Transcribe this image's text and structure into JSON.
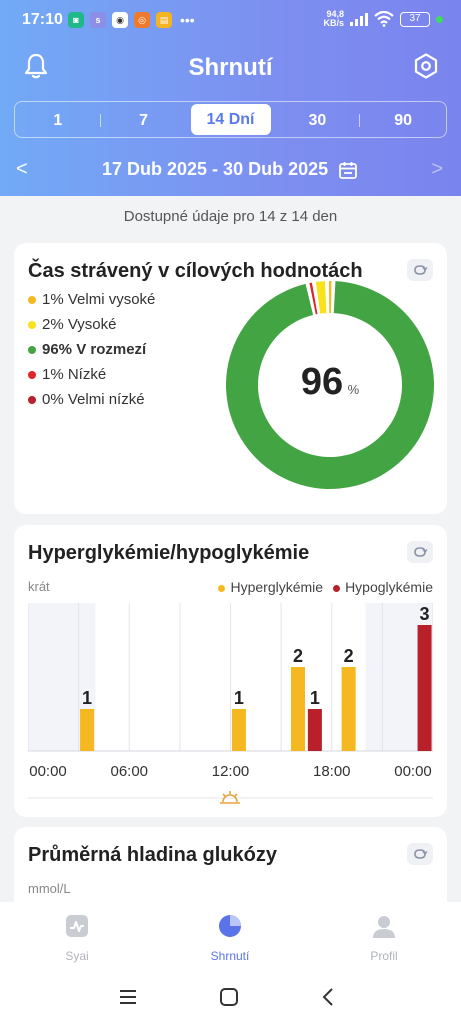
{
  "status_bar": {
    "time": "17:10",
    "app_icons": [
      {
        "name": "mi-icon",
        "color": "#1fb889",
        "glyph": "◙"
      },
      {
        "name": "syai-icon",
        "color": "#8d8fe6",
        "glyph": "s"
      },
      {
        "name": "chrome-icon",
        "color": "#ffffff",
        "glyph": "◉"
      },
      {
        "name": "orange-app-icon",
        "color": "#f07a2b",
        "glyph": "◎"
      },
      {
        "name": "notes-icon",
        "color": "#f5b321",
        "glyph": "▤"
      }
    ],
    "more": "•••",
    "net_speed_value": "94,8",
    "net_speed_unit": "KB/s",
    "battery": "37"
  },
  "header": {
    "title": "Shrnutí",
    "range_tabs": [
      {
        "label": "1",
        "active": false
      },
      {
        "label": "7",
        "active": false
      },
      {
        "label": "14 Dní",
        "active": true
      },
      {
        "label": "30",
        "active": false
      },
      {
        "label": "90",
        "active": false
      }
    ],
    "date_range": "17 Dub 2025 - 30 Dub 2025",
    "prev_arrow": "<",
    "next_arrow": ">"
  },
  "availability_text": "Dostupné údaje pro 14 z 14 den",
  "time_in_range": {
    "title": "Čas strávený v cílových hodnotách",
    "center_value": "96",
    "center_unit": "%",
    "legend": [
      {
        "text": "1% Velmi vysoké",
        "color": "#f5b821",
        "percent": 1,
        "bold": false
      },
      {
        "text": "2% Vysoké",
        "color": "#f7e21b",
        "percent": 2,
        "bold": false
      },
      {
        "text": "96% V rozmezí",
        "color": "#43a443",
        "percent": 96,
        "bold": true
      },
      {
        "text": "1% Nízké",
        "color": "#e0262a",
        "percent": 1,
        "bold": false
      },
      {
        "text": "0% Velmi nízké",
        "color": "#b8202a",
        "percent": 0,
        "bold": false
      }
    ]
  },
  "hyper_hypo": {
    "title": "Hyperglykémie/hypoglykémie",
    "unit": "krát",
    "legend_hyper": "Hyperglykémie",
    "legend_hypo": "Hypoglykémie",
    "hyper_color": "#f5b821",
    "hypo_color": "#b8202a",
    "x_labels": [
      "00:00",
      "06:00",
      "12:00",
      "18:00",
      "00:00"
    ]
  },
  "chart_data": {
    "type": "bar",
    "x_unit": "hour of day",
    "x_range": [
      0,
      24
    ],
    "y_range": [
      0,
      3
    ],
    "series": [
      {
        "name": "Hyperglykémie",
        "points": [
          {
            "hour": 3.5,
            "value": 1
          },
          {
            "hour": 12.5,
            "value": 1
          },
          {
            "hour": 16,
            "value": 2
          },
          {
            "hour": 19,
            "value": 2
          }
        ]
      },
      {
        "name": "Hypoglykémie",
        "points": [
          {
            "hour": 17,
            "value": 1
          },
          {
            "hour": 23.5,
            "value": 3
          }
        ]
      }
    ]
  },
  "avg_glucose": {
    "title": "Průměrná hladina glukózy",
    "unit": "mmol/L"
  },
  "tabbar": {
    "items": [
      {
        "label": "Syai",
        "active": false
      },
      {
        "label": "Shrnutí",
        "active": true
      },
      {
        "label": "Profil",
        "active": false
      }
    ]
  }
}
